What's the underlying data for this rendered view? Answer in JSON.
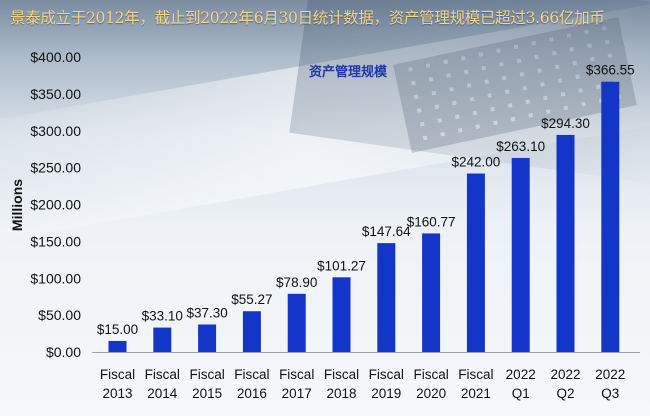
{
  "headline": "景泰成立于2012年，截止到2022年6月30日统计数据，资产管理规模已超过3.66亿加币",
  "chart_data": {
    "type": "bar",
    "title": "资产管理规模",
    "xlabel": "",
    "ylabel": "Millions",
    "ylim": [
      0,
      400
    ],
    "yticks": [
      "$0.00",
      "$50.00",
      "$100.00",
      "$150.00",
      "$200.00",
      "$250.00",
      "$300.00",
      "$350.00",
      "$400.00"
    ],
    "categories": [
      [
        "Fiscal",
        "2013"
      ],
      [
        "Fiscal",
        "2014"
      ],
      [
        "Fiscal",
        "2015"
      ],
      [
        "Fiscal",
        "2016"
      ],
      [
        "Fiscal",
        "2017"
      ],
      [
        "Fiscal",
        "2018"
      ],
      [
        "Fiscal",
        "2019"
      ],
      [
        "Fiscal",
        "2020"
      ],
      [
        "Fiscal",
        "2021"
      ],
      [
        "2022",
        "Q1"
      ],
      [
        "2022",
        "Q2"
      ],
      [
        "2022",
        "Q3"
      ]
    ],
    "values": [
      15.0,
      33.1,
      37.3,
      55.27,
      78.9,
      101.27,
      147.64,
      160.77,
      242.0,
      263.1,
      294.3,
      366.55
    ],
    "labels": [
      "$15.00",
      "$33.10",
      "$37.30",
      "$55.27",
      "$78.90",
      "$101.27",
      "$147.64",
      "$160.77",
      "$242.00",
      "$263.10",
      "$294.30",
      "$366.55"
    ],
    "bar_color": "#1436c8",
    "grid": false,
    "legend": "none"
  }
}
